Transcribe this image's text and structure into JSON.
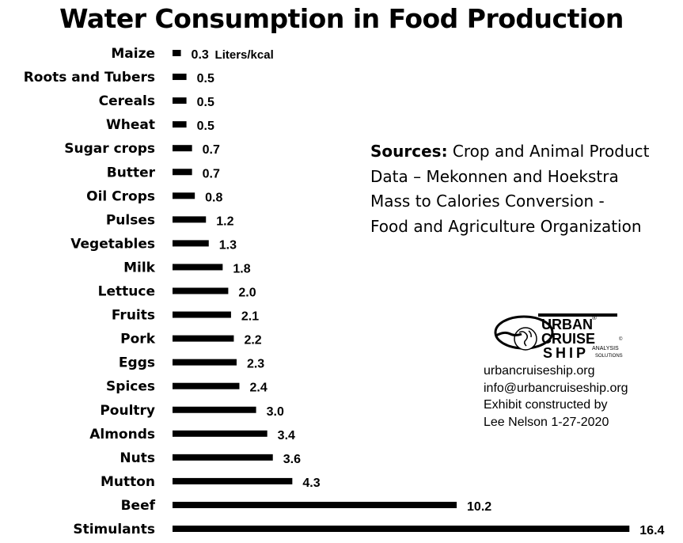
{
  "chart_data": {
    "type": "bar",
    "orientation": "horizontal",
    "title": "Water Consumption in Food Production",
    "unit_label": "Liters/kcal",
    "categories": [
      "Maize",
      "Roots and Tubers",
      "Cereals",
      "Wheat",
      "Sugar crops",
      "Butter",
      "Oil Crops",
      "Pulses",
      "Vegetables",
      "Milk",
      "Lettuce",
      "Fruits",
      "Pork",
      "Eggs",
      "Spices",
      "Poultry",
      "Almonds",
      "Nuts",
      "Mutton",
      "Beef",
      "Stimulants"
    ],
    "values": [
      0.3,
      0.5,
      0.5,
      0.5,
      0.7,
      0.7,
      0.8,
      1.2,
      1.3,
      1.8,
      2.0,
      2.1,
      2.2,
      2.3,
      2.4,
      3.0,
      3.4,
      3.6,
      4.3,
      10.2,
      16.4
    ],
    "value_labels": [
      "0.3",
      "0.5",
      "0.5",
      "0.5",
      "0.7",
      "0.7",
      "0.8",
      "1.2",
      "1.3",
      "1.8",
      "2.0",
      "2.1",
      "2.2",
      "2.3",
      "2.4",
      "3.0",
      "3.4",
      "3.6",
      "4.3",
      "10.2",
      "16.4"
    ],
    "bar_color": "#000000",
    "grid": false
  },
  "sources": {
    "heading": "Sources:",
    "line1_rest": " Crop and Animal Product",
    "line2": "Data – Mekonnen and Hoekstra",
    "line3": "Mass to Calories Conversion -",
    "line4": "Food and Agriculture Organization"
  },
  "logo": {
    "word1": "URBAN",
    "word2": "CRUISE",
    "word3": "SHIP",
    "tagline1": "ANALYSIS",
    "tagline2": "SOLUTIONS",
    "mark": "®",
    "mark2": "©"
  },
  "credits": {
    "website": "urbancruiseship.org",
    "email": "info@urbancruiseship.org",
    "line3": "Exhibit constructed by",
    "line4": "Lee Nelson 1-27-2020"
  }
}
